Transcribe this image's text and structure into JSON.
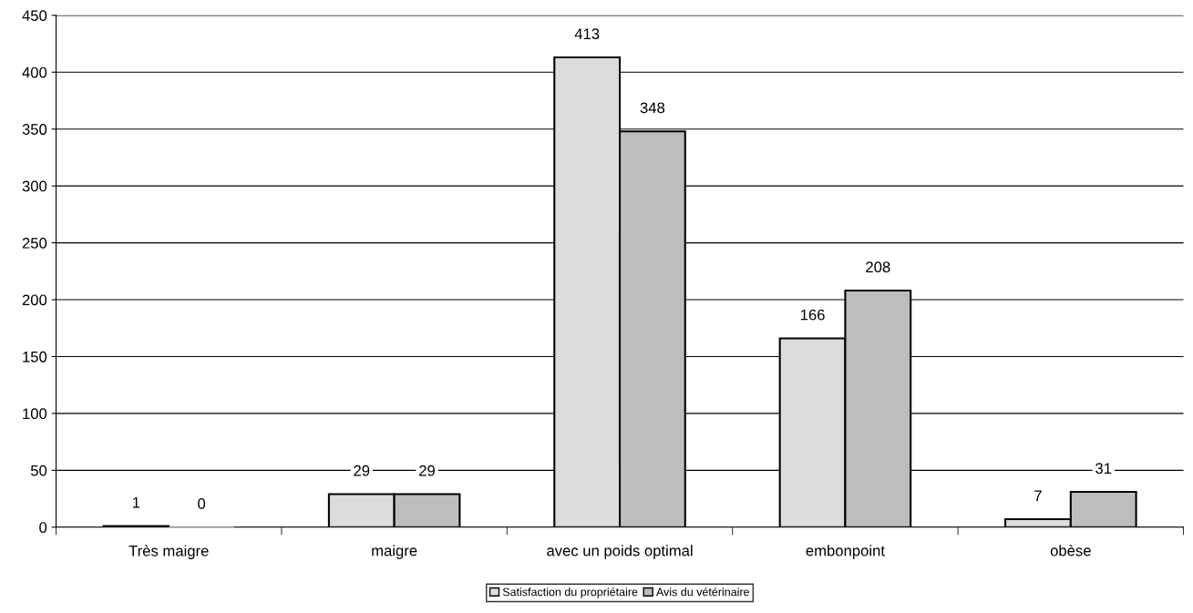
{
  "chart_data": {
    "type": "bar",
    "categories": [
      "Très maigre",
      "maigre",
      "avec un poids optimal",
      "embonpoint",
      "obèse"
    ],
    "series": [
      {
        "name": "Satisfaction du propriétaire",
        "color": "#dcdcdc",
        "values": [
          1,
          29,
          413,
          166,
          7
        ]
      },
      {
        "name": "Avis du vétérinaire",
        "color": "#bdbdbd",
        "values": [
          0,
          29,
          348,
          208,
          31
        ]
      }
    ],
    "ylim": [
      0,
      450
    ],
    "yticks": [
      0,
      50,
      100,
      150,
      200,
      250,
      300,
      350,
      400,
      450
    ],
    "grid": "y",
    "legend": "bottom",
    "data_labels": true
  }
}
